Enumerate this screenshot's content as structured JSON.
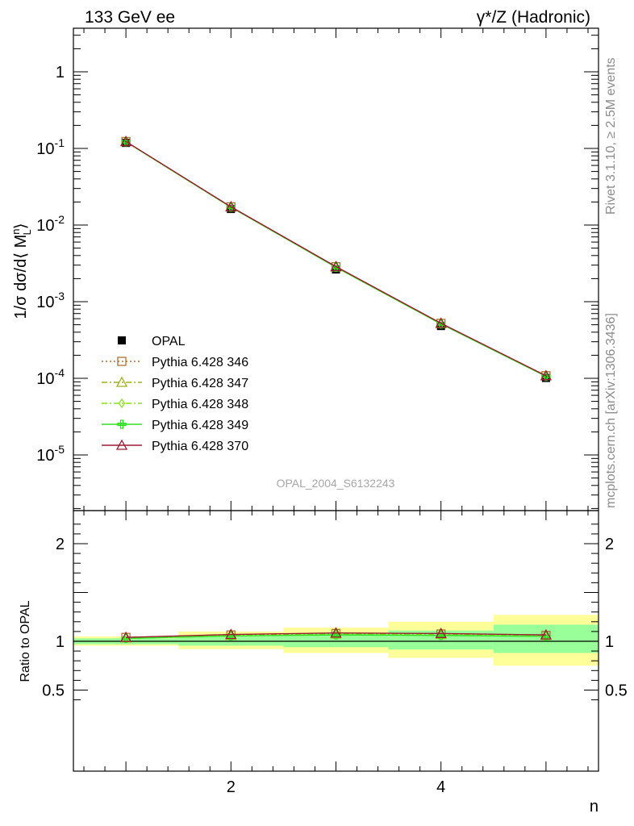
{
  "title_left": "133 GeV ee",
  "title_right": "γ*/Z (Hadronic)",
  "side_label_top": "Rivet 3.1.10, ≥ 2.5M events",
  "side_label_bottom": "mcplots.cern.ch [arXiv:1306.3436]",
  "analysis_id": "OPAL_2004_S6132243",
  "chart_data": {
    "type": "line",
    "title": "",
    "xlabel": "n",
    "ylabel": "1/σ dσ/d⟨ M_L^n ⟩",
    "ratio_ylabel": "Ratio to OPAL",
    "xlim": [
      0.5,
      5.5
    ],
    "ylim": [
      2e-06,
      4
    ],
    "ratio_ylim": [
      0.35,
      2.3
    ],
    "yscale": "log",
    "x_ticks": [
      2,
      4
    ],
    "y_tick_labels": [
      "1",
      "10^-1",
      "10^-2",
      "10^-3",
      "10^-4",
      "10^-5"
    ],
    "ratio_y_ticks": [
      0.5,
      1,
      2
    ],
    "legend_position": "lower-left",
    "x": [
      1,
      2,
      3,
      4,
      5
    ],
    "data": {
      "name": "OPAL",
      "values": [
        0.118,
        0.0162,
        0.00263,
        0.000481,
        0.000101
      ],
      "ratio_band_inner": [
        [
          0.97,
          1.03
        ],
        [
          0.955,
          1.06
        ],
        [
          0.94,
          1.08
        ],
        [
          0.915,
          1.11
        ],
        [
          0.88,
          1.17
        ]
      ],
      "ratio_band_outer": [
        [
          0.955,
          1.05
        ],
        [
          0.92,
          1.1
        ],
        [
          0.88,
          1.14
        ],
        [
          0.83,
          1.2
        ],
        [
          0.75,
          1.27
        ]
      ]
    },
    "series": [
      {
        "name": "Pythia 6.428 346",
        "color": "#b07030",
        "marker": "square",
        "dash": "2,3",
        "values": [
          0.123,
          0.0173,
          0.00286,
          0.000521,
          0.000108
        ],
        "ratio": [
          1.04,
          1.065,
          1.08,
          1.075,
          1.06
        ]
      },
      {
        "name": "Pythia 6.428 347",
        "color": "#9fb020",
        "marker": "triangle",
        "dash": "7,3,2,3",
        "values": [
          0.123,
          0.0172,
          0.00284,
          0.000518,
          0.000108
        ],
        "ratio": [
          1.035,
          1.06,
          1.075,
          1.07,
          1.06
        ]
      },
      {
        "name": "Pythia 6.428 348",
        "color": "#88e020",
        "marker": "diamond",
        "dash": "7,3,2,3",
        "values": [
          0.122,
          0.0171,
          0.00282,
          0.000514,
          0.000107
        ],
        "ratio": [
          1.03,
          1.055,
          1.07,
          1.065,
          1.055
        ]
      },
      {
        "name": "Pythia 6.428 349",
        "color": "#30e020",
        "marker": "cross",
        "dash": "",
        "values": [
          0.122,
          0.0171,
          0.00281,
          0.000512,
          0.000106
        ],
        "ratio": [
          1.03,
          1.055,
          1.065,
          1.06,
          1.05
        ]
      },
      {
        "name": "Pythia 6.428 370",
        "color": "#9a1a30",
        "marker": "triangle",
        "dash": "",
        "values": [
          0.123,
          0.0173,
          0.00287,
          0.000523,
          0.000108
        ],
        "ratio": [
          1.04,
          1.07,
          1.085,
          1.08,
          1.065
        ]
      }
    ]
  }
}
